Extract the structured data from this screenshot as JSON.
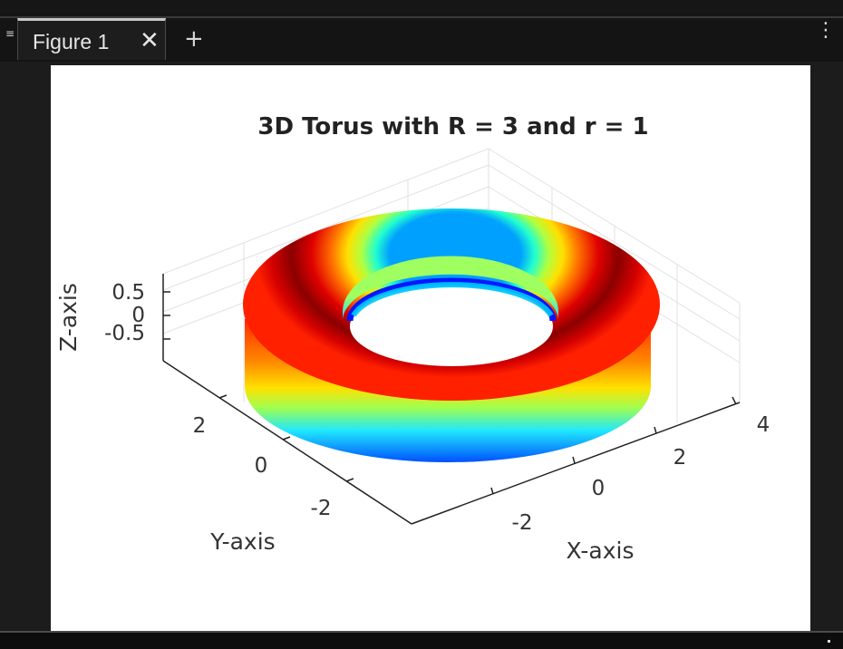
{
  "tab": {
    "label": "Figure 1",
    "close_glyph": "✕"
  },
  "new_tab_glyph": "+",
  "menu_glyph": "⋮",
  "icons": {
    "grip": "grip-icon",
    "close": "close-icon",
    "add": "plus-icon",
    "more": "more-vertical-icon"
  },
  "chart_data": {
    "type": "surface",
    "title": "3D Torus with R = 3 and r = 1",
    "xlabel": "X-axis",
    "ylabel": "Y-axis",
    "zlabel": "Z-axis",
    "x_ticks": [
      "-2",
      "0",
      "2",
      "4"
    ],
    "y_ticks": [
      "-2",
      "0",
      "2"
    ],
    "z_ticks": [
      "-0.5",
      "0",
      "0.5"
    ],
    "R": 3,
    "r": 1,
    "colormap": "jet",
    "grid": true
  }
}
